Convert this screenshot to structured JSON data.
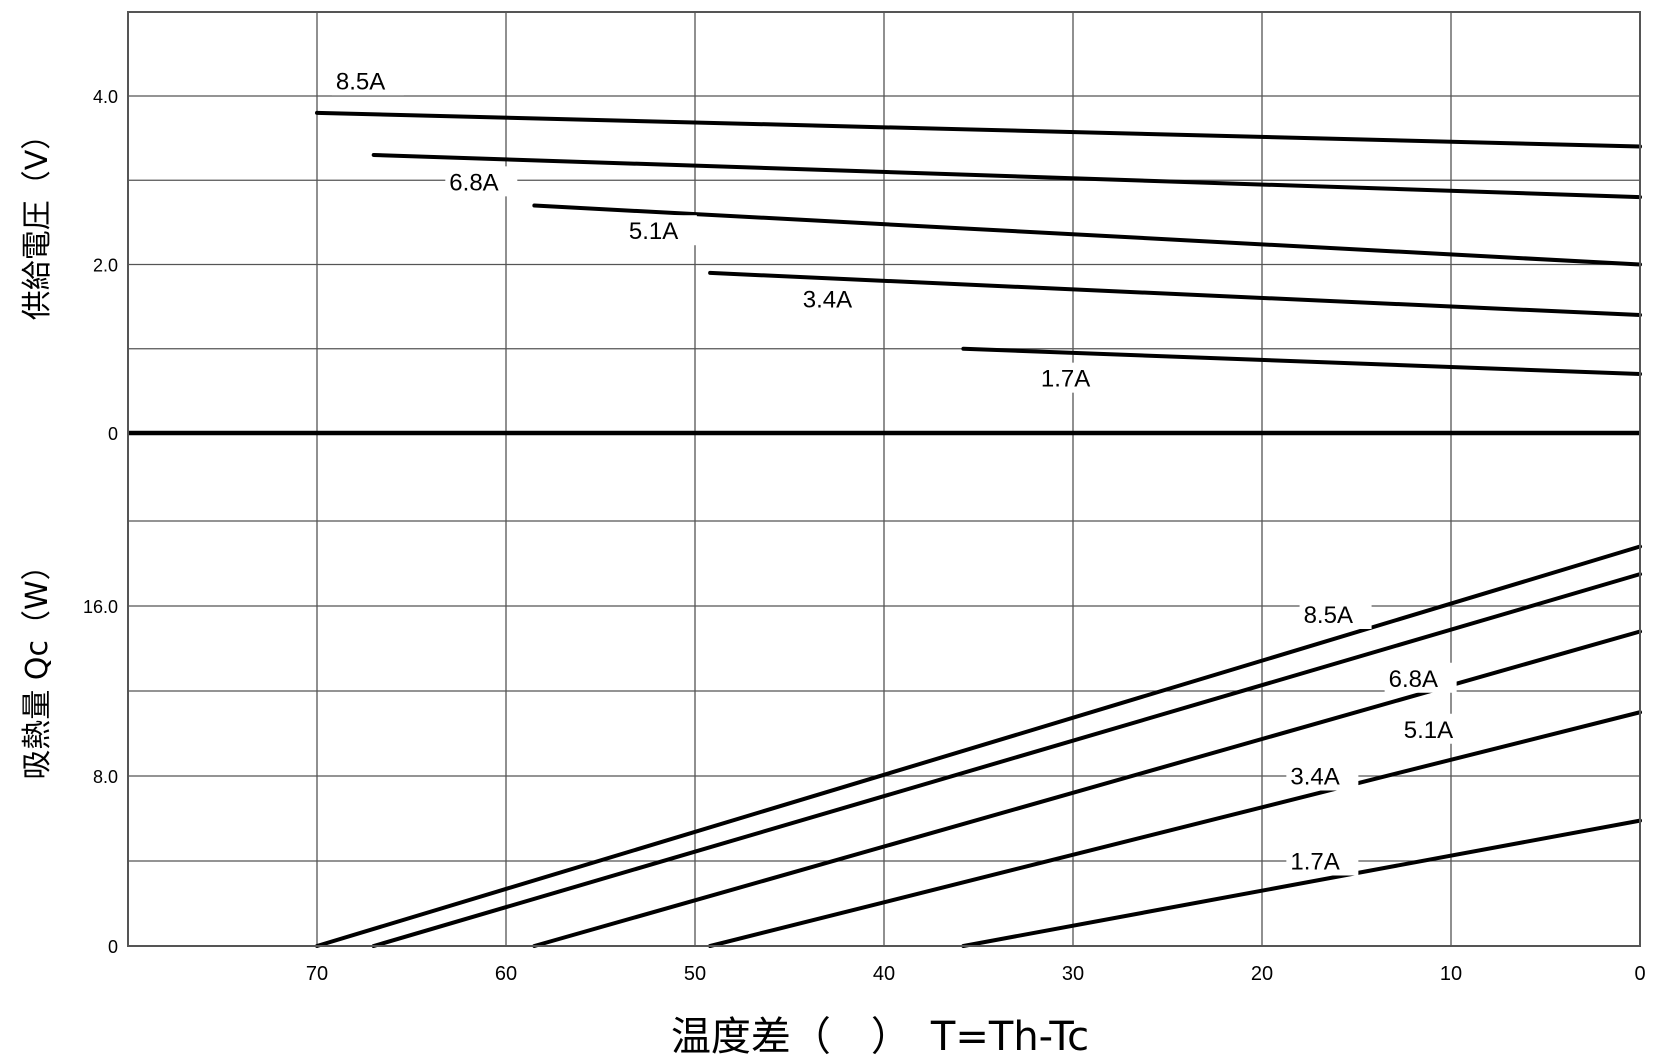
{
  "chart_data": [
    {
      "type": "line",
      "panel": "top",
      "ylabel": "供給電圧（V）",
      "xlim": [
        80,
        0
      ],
      "ylim": [
        -0.1,
        5.0
      ],
      "yticks": [
        {
          "value": 4.0,
          "label": "4.0"
        },
        {
          "value": 2.0,
          "label": "2.0"
        },
        {
          "value": 0,
          "label": "0"
        }
      ],
      "series": [
        {
          "name": "8.5A",
          "points": [
            [
              70,
              3.8
            ],
            [
              0,
              3.4
            ]
          ],
          "label": {
            "text": "8.5A",
            "x": 69,
            "y": 4.08
          }
        },
        {
          "name": "6.8A",
          "points": [
            [
              67,
              3.3
            ],
            [
              0,
              2.8
            ]
          ],
          "label": {
            "text": "6.8A",
            "x": 63,
            "y": 2.88
          }
        },
        {
          "name": "5.1A",
          "points": [
            [
              58.5,
              2.7
            ],
            [
              0,
              2.0
            ]
          ],
          "label": {
            "text": "5.1A",
            "x": 53.5,
            "y": 2.3
          }
        },
        {
          "name": "3.4A",
          "points": [
            [
              49.2,
              1.9
            ],
            [
              0,
              1.4
            ]
          ],
          "label": {
            "text": "3.4A",
            "x": 44.3,
            "y": 1.49
          }
        },
        {
          "name": "1.7A",
          "points": [
            [
              35.8,
              1.0
            ],
            [
              0,
              0.7
            ]
          ],
          "label": {
            "text": "1.7A",
            "x": 31.7,
            "y": 0.55
          }
        }
      ]
    },
    {
      "type": "line",
      "panel": "bottom",
      "ylabel": "吸熱量 Qc（W）",
      "xlabel": "温度差（　）　T=Th-Tc",
      "xlim": [
        80,
        0
      ],
      "ylim": [
        0,
        20
      ],
      "xticks": [
        {
          "value": 70,
          "label": "70"
        },
        {
          "value": 60,
          "label": "60"
        },
        {
          "value": 50,
          "label": "50"
        },
        {
          "value": 40,
          "label": "40"
        },
        {
          "value": 30,
          "label": "30"
        },
        {
          "value": 20,
          "label": "20"
        },
        {
          "value": 10,
          "label": "10"
        },
        {
          "value": 0,
          "label": "0"
        }
      ],
      "yticks": [
        {
          "value": 16.0,
          "label": "16.0"
        },
        {
          "value": 8.0,
          "label": "8.0"
        },
        {
          "value": 0,
          "label": "0"
        }
      ],
      "series": [
        {
          "name": "8.5A",
          "points": [
            [
              70,
              0
            ],
            [
              0,
              18.8
            ]
          ],
          "label": {
            "text": "8.5A",
            "x": 17.8,
            "y": 15.2
          }
        },
        {
          "name": "6.8A",
          "points": [
            [
              67,
              0
            ],
            [
              0,
              17.5
            ]
          ],
          "label": {
            "text": "6.8A",
            "x": 13.3,
            "y": 12.2
          }
        },
        {
          "name": "5.1A",
          "points": [
            [
              58.5,
              0
            ],
            [
              0,
              14.8
            ]
          ],
          "label": {
            "text": "5.1A",
            "x": 12.5,
            "y": 9.8
          }
        },
        {
          "name": "3.4A",
          "points": [
            [
              49.2,
              0
            ],
            [
              0,
              11.0
            ]
          ],
          "label": {
            "text": "3.4A",
            "x": 18.5,
            "y": 7.6
          }
        },
        {
          "name": "1.7A",
          "points": [
            [
              35.8,
              0
            ],
            [
              0,
              5.9
            ]
          ],
          "label": {
            "text": "1.7A",
            "x": 18.5,
            "y": 3.6
          }
        }
      ]
    }
  ]
}
